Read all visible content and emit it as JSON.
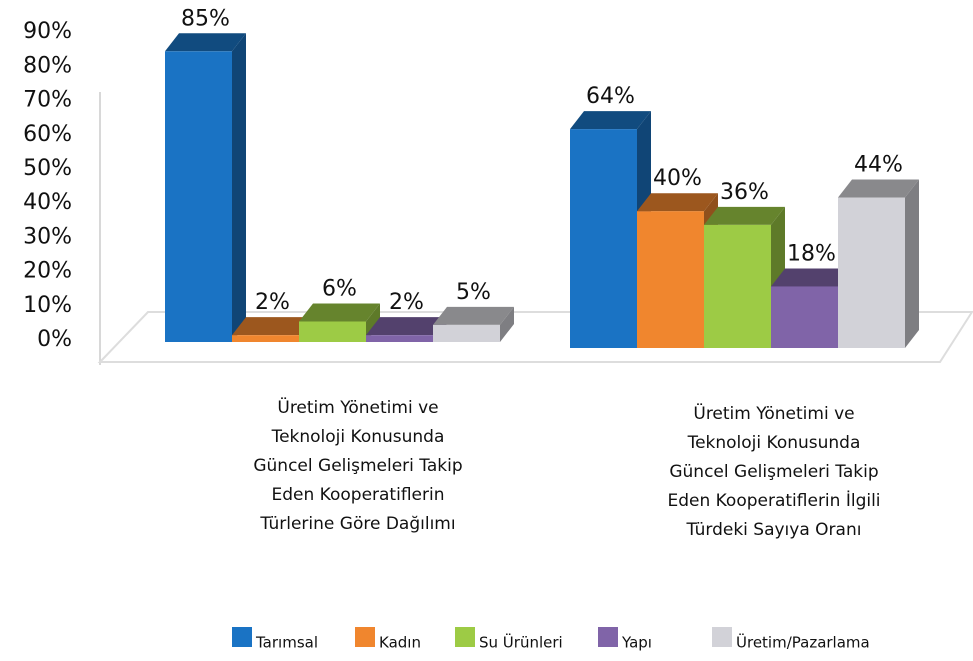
{
  "chart_data": {
    "type": "bar3d",
    "categories": [
      "Üretim Yönetimi ve\nTeknoloji Konusunda\nGüncel Gelişmeleri Takip\nEden Kooperatiflerin\nTürlerine Göre Dağılımı",
      "Üretim Yönetimi ve\nTeknoloji Konusunda\nGüncel Gelişmeleri Takip\nEden Kooperatiflerin İlgili\nTürdeki Sayıya Oranı"
    ],
    "series": [
      {
        "name": "Tarımsal",
        "color": "#1a73c4",
        "values": [
          85,
          64
        ],
        "value_labels": [
          "85%",
          "64%"
        ]
      },
      {
        "name": "Kadın",
        "color": "#f0862e",
        "values": [
          2,
          40
        ],
        "value_labels": [
          "2%",
          "40%"
        ]
      },
      {
        "name": "Su Ürünleri",
        "color": "#9dcb45",
        "values": [
          6,
          36
        ],
        "value_labels": [
          "6%",
          "36%"
        ]
      },
      {
        "name": "Yapı",
        "color": "#8064a8",
        "values": [
          2,
          18
        ],
        "value_labels": [
          "2%",
          "18%"
        ]
      },
      {
        "name": "Üretim/Pazarlama",
        "color": "#d2d2d8",
        "values": [
          5,
          44
        ],
        "value_labels": [
          "5%",
          "44%"
        ]
      }
    ],
    "ylim": [
      0,
      90
    ],
    "yticks": [
      {
        "value": 0,
        "label": "0%"
      },
      {
        "value": 10,
        "label": "10%"
      },
      {
        "value": 20,
        "label": "20%"
      },
      {
        "value": 30,
        "label": "30%"
      },
      {
        "value": 40,
        "label": "40%"
      },
      {
        "value": 50,
        "label": "50%"
      },
      {
        "value": 60,
        "label": "60%"
      },
      {
        "value": 70,
        "label": "70%"
      },
      {
        "value": 80,
        "label": "80%"
      },
      {
        "value": 90,
        "label": "90%"
      }
    ],
    "legend": "bottom"
  }
}
